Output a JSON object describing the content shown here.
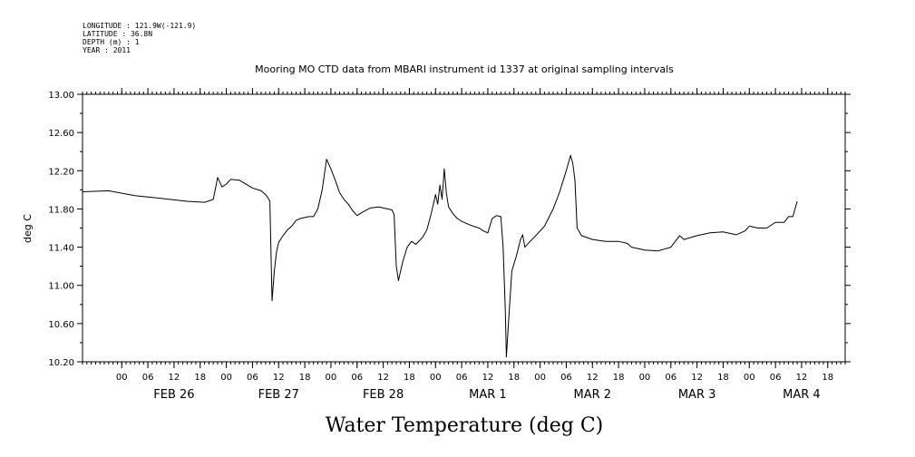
{
  "header": {
    "lines": [
      "LONGITUDE : 121.9W(-121.9)",
      "LATITUDE : 36.8N",
      "DEPTH (m) : 1",
      "YEAR : 2011"
    ]
  },
  "chart_data": {
    "type": "line",
    "title": "Mooring MO CTD data from MBARI instrument id 1337 at original sampling intervals",
    "xlabel": "Water Temperature (deg C)",
    "ylabel": "deg C",
    "ylim": [
      10.2,
      13.0
    ],
    "yticks": [
      "13.00",
      "12.60",
      "12.20",
      "11.80",
      "11.40",
      "11.00",
      "10.60",
      "10.20"
    ],
    "xlim": [
      "2011-02-25T15:00",
      "2011-03-04T22:00"
    ],
    "hour_ticks": [
      "2011-02-26T00:00",
      "2011-02-26T06:00",
      "2011-02-26T12:00",
      "2011-02-26T18:00",
      "2011-02-27T00:00",
      "2011-02-27T06:00",
      "2011-02-27T12:00",
      "2011-02-27T18:00",
      "2011-02-28T00:00",
      "2011-02-28T06:00",
      "2011-02-28T12:00",
      "2011-02-28T18:00",
      "2011-03-01T00:00",
      "2011-03-01T06:00",
      "2011-03-01T12:00",
      "2011-03-01T18:00",
      "2011-03-02T00:00",
      "2011-03-02T06:00",
      "2011-03-02T12:00",
      "2011-03-02T18:00",
      "2011-03-03T00:00",
      "2011-03-03T06:00",
      "2011-03-03T12:00",
      "2011-03-03T18:00",
      "2011-03-04T00:00",
      "2011-03-04T06:00",
      "2011-03-04T12:00",
      "2011-03-04T18:00"
    ],
    "hour_labels": [
      "00",
      "06",
      "12",
      "18",
      "00",
      "06",
      "12",
      "18",
      "00",
      "06",
      "12",
      "18",
      "00",
      "06",
      "12",
      "18",
      "00",
      "06",
      "12",
      "18",
      "00",
      "06",
      "12",
      "18",
      "00",
      "06",
      "12",
      "18"
    ],
    "day_labels": [
      {
        "text": "FEB 26",
        "at": "2011-02-26T12:00"
      },
      {
        "text": "FEB 27",
        "at": "2011-02-27T12:00"
      },
      {
        "text": "FEB 28",
        "at": "2011-02-28T12:00"
      },
      {
        "text": "MAR 1",
        "at": "2011-03-01T12:00"
      },
      {
        "text": "MAR 2",
        "at": "2011-03-02T12:00"
      },
      {
        "text": "MAR 3",
        "at": "2011-03-03T12:00"
      },
      {
        "text": "MAR 4",
        "at": "2011-03-04T12:00"
      }
    ],
    "series": [
      {
        "points": [
          [
            "2011-02-25T15:00",
            11.98
          ],
          [
            "2011-02-25T21:00",
            11.99
          ],
          [
            "2011-02-26T03:00",
            11.94
          ],
          [
            "2011-02-26T09:00",
            11.91
          ],
          [
            "2011-02-26T15:00",
            11.88
          ],
          [
            "2011-02-26T19:00",
            11.87
          ],
          [
            "2011-02-26T21:00",
            11.9
          ],
          [
            "2011-02-26T22:00",
            12.13
          ],
          [
            "2011-02-26T23:00",
            12.03
          ],
          [
            "2011-02-27T00:00",
            12.06
          ],
          [
            "2011-02-27T01:00",
            12.11
          ],
          [
            "2011-02-27T03:00",
            12.1
          ],
          [
            "2011-02-27T06:00",
            12.02
          ],
          [
            "2011-02-27T08:00",
            11.99
          ],
          [
            "2011-02-27T09:00",
            11.95
          ],
          [
            "2011-02-27T09:30",
            11.92
          ],
          [
            "2011-02-27T10:00",
            11.88
          ],
          [
            "2011-02-27T10:30",
            10.84
          ],
          [
            "2011-02-27T11:00",
            11.15
          ],
          [
            "2011-02-27T11:30",
            11.35
          ],
          [
            "2011-02-27T12:00",
            11.45
          ],
          [
            "2011-02-27T13:00",
            11.52
          ],
          [
            "2011-02-27T14:00",
            11.58
          ],
          [
            "2011-02-27T15:00",
            11.62
          ],
          [
            "2011-02-27T16:00",
            11.68
          ],
          [
            "2011-02-27T17:00",
            11.7
          ],
          [
            "2011-02-27T18:00",
            11.71
          ],
          [
            "2011-02-27T19:00",
            11.72
          ],
          [
            "2011-02-27T20:00",
            11.72
          ],
          [
            "2011-02-27T21:00",
            11.8
          ],
          [
            "2011-02-27T22:00",
            12.0
          ],
          [
            "2011-02-27T23:00",
            12.32
          ],
          [
            "2011-02-28T00:00",
            12.22
          ],
          [
            "2011-02-28T01:00",
            12.1
          ],
          [
            "2011-02-28T02:00",
            11.97
          ],
          [
            "2011-02-28T03:00",
            11.9
          ],
          [
            "2011-02-28T04:00",
            11.85
          ],
          [
            "2011-02-28T05:00",
            11.78
          ],
          [
            "2011-02-28T06:00",
            11.73
          ],
          [
            "2011-02-28T07:00",
            11.76
          ],
          [
            "2011-02-28T09:00",
            11.81
          ],
          [
            "2011-02-28T11:00",
            11.82
          ],
          [
            "2011-02-28T13:00",
            11.8
          ],
          [
            "2011-02-28T14:00",
            11.79
          ],
          [
            "2011-02-28T14:30",
            11.74
          ],
          [
            "2011-02-28T15:00",
            11.2
          ],
          [
            "2011-02-28T15:30",
            11.05
          ],
          [
            "2011-02-28T16:30",
            11.25
          ],
          [
            "2011-02-28T17:30",
            11.4
          ],
          [
            "2011-02-28T18:30",
            11.46
          ],
          [
            "2011-02-28T19:30",
            11.43
          ],
          [
            "2011-02-28T21:00",
            11.5
          ],
          [
            "2011-02-28T22:00",
            11.58
          ],
          [
            "2011-02-28T23:00",
            11.75
          ],
          [
            "2011-03-01T00:00",
            11.95
          ],
          [
            "2011-03-01T00:30",
            11.85
          ],
          [
            "2011-03-01T01:00",
            12.05
          ],
          [
            "2011-03-01T01:30",
            11.9
          ],
          [
            "2011-03-01T02:00",
            12.22
          ],
          [
            "2011-03-01T02:30",
            11.96
          ],
          [
            "2011-03-01T03:00",
            11.82
          ],
          [
            "2011-03-01T04:00",
            11.75
          ],
          [
            "2011-03-01T05:00",
            11.7
          ],
          [
            "2011-03-01T06:00",
            11.67
          ],
          [
            "2011-03-01T08:00",
            11.63
          ],
          [
            "2011-03-01T10:00",
            11.6
          ],
          [
            "2011-03-01T11:00",
            11.57
          ],
          [
            "2011-03-01T12:00",
            11.55
          ],
          [
            "2011-03-01T13:00",
            11.7
          ],
          [
            "2011-03-01T14:00",
            11.73
          ],
          [
            "2011-03-01T15:00",
            11.72
          ],
          [
            "2011-03-01T15:30",
            11.4
          ],
          [
            "2011-03-01T16:00",
            10.75
          ],
          [
            "2011-03-01T16:15",
            10.25
          ],
          [
            "2011-03-01T16:45",
            10.62
          ],
          [
            "2011-03-01T17:30",
            11.15
          ],
          [
            "2011-03-01T18:30",
            11.3
          ],
          [
            "2011-03-01T19:30",
            11.48
          ],
          [
            "2011-03-01T20:00",
            11.53
          ],
          [
            "2011-03-01T20:30",
            11.4
          ],
          [
            "2011-03-01T21:30",
            11.45
          ],
          [
            "2011-03-01T23:00",
            11.52
          ],
          [
            "2011-03-02T01:00",
            11.62
          ],
          [
            "2011-03-02T03:00",
            11.8
          ],
          [
            "2011-03-02T04:30",
            11.98
          ],
          [
            "2011-03-02T06:00",
            12.2
          ],
          [
            "2011-03-02T07:00",
            12.36
          ],
          [
            "2011-03-02T07:30",
            12.28
          ],
          [
            "2011-03-02T08:00",
            12.1
          ],
          [
            "2011-03-02T08:30",
            11.6
          ],
          [
            "2011-03-02T09:30",
            11.52
          ],
          [
            "2011-03-02T12:00",
            11.48
          ],
          [
            "2011-03-02T15:00",
            11.46
          ],
          [
            "2011-03-02T18:00",
            11.46
          ],
          [
            "2011-03-02T20:00",
            11.44
          ],
          [
            "2011-03-02T21:00",
            11.4
          ],
          [
            "2011-03-03T00:00",
            11.37
          ],
          [
            "2011-03-03T03:00",
            11.36
          ],
          [
            "2011-03-03T06:00",
            11.4
          ],
          [
            "2011-03-03T08:00",
            11.52
          ],
          [
            "2011-03-03T09:00",
            11.48
          ],
          [
            "2011-03-03T12:00",
            11.52
          ],
          [
            "2011-03-03T15:00",
            11.55
          ],
          [
            "2011-03-03T18:00",
            11.56
          ],
          [
            "2011-03-03T21:00",
            11.53
          ],
          [
            "2011-03-03T23:00",
            11.57
          ],
          [
            "2011-03-04T00:00",
            11.62
          ],
          [
            "2011-03-04T02:00",
            11.6
          ],
          [
            "2011-03-04T04:00",
            11.6
          ],
          [
            "2011-03-04T06:00",
            11.66
          ],
          [
            "2011-03-04T08:00",
            11.66
          ],
          [
            "2011-03-04T09:00",
            11.72
          ],
          [
            "2011-03-04T10:00",
            11.72
          ],
          [
            "2011-03-04T11:00",
            11.88
          ]
        ]
      }
    ]
  }
}
